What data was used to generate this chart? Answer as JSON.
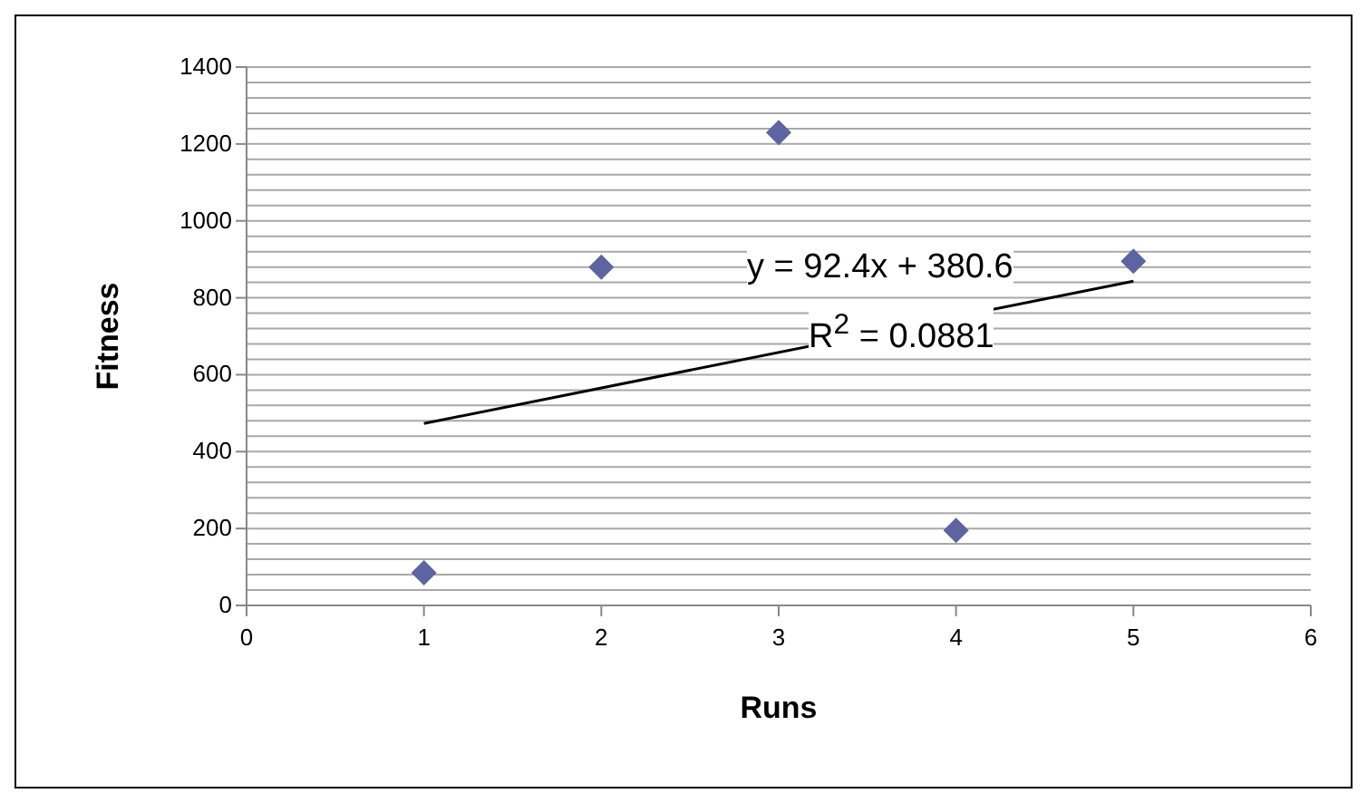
{
  "chart_data": {
    "type": "scatter",
    "xlabel": "Runs",
    "ylabel": "Fitness",
    "x": [
      1,
      2,
      3,
      4,
      5
    ],
    "series": [
      {
        "color": "#5d64a0",
        "marker": "diamond",
        "values": [
          85,
          880,
          1230,
          195,
          895
        ]
      },
      {
        "type": "line",
        "color": "#000000",
        "marker": "none",
        "x": [
          1,
          5
        ],
        "values": [
          473,
          843
        ]
      }
    ],
    "xlim": [
      0,
      6
    ],
    "xticks": [
      0,
      1,
      2,
      3,
      4,
      5,
      6
    ],
    "ylim": [
      0,
      1400
    ],
    "yticks": [
      0,
      {
        "value": 40,
        "label": null
      },
      {
        "value": 80,
        "label": null
      },
      {
        "value": 120,
        "label": null
      },
      {
        "value": 160,
        "label": null
      },
      200,
      {
        "value": 240,
        "label": null
      },
      {
        "value": 280,
        "label": null
      },
      {
        "value": 320,
        "label": null
      },
      {
        "value": 360,
        "label": null
      },
      400,
      {
        "value": 440,
        "label": null
      },
      {
        "value": 480,
        "label": null
      },
      {
        "value": 520,
        "label": null
      },
      {
        "value": 560,
        "label": null
      },
      600,
      {
        "value": 640,
        "label": null
      },
      {
        "value": 680,
        "label": null
      },
      {
        "value": 720,
        "label": null
      },
      {
        "value": 760,
        "label": null
      },
      800,
      {
        "value": 840,
        "label": null
      },
      {
        "value": 880,
        "label": null
      },
      {
        "value": 920,
        "label": null
      },
      {
        "value": 960,
        "label": null
      },
      1000,
      {
        "value": 1040,
        "label": null
      },
      {
        "value": 1080,
        "label": null
      },
      {
        "value": 1120,
        "label": null
      },
      {
        "value": 1160,
        "label": null
      },
      1200,
      {
        "value": 1240,
        "label": null
      },
      {
        "value": 1280,
        "label": null
      },
      {
        "value": 1320,
        "label": null
      },
      {
        "value": 1360,
        "label": null
      },
      1400
    ],
    "grid": "y",
    "legend": false,
    "annotations": [
      "y = 92.4x + 380.6",
      "R$^{2}$ = 0.0881"
    ]
  }
}
